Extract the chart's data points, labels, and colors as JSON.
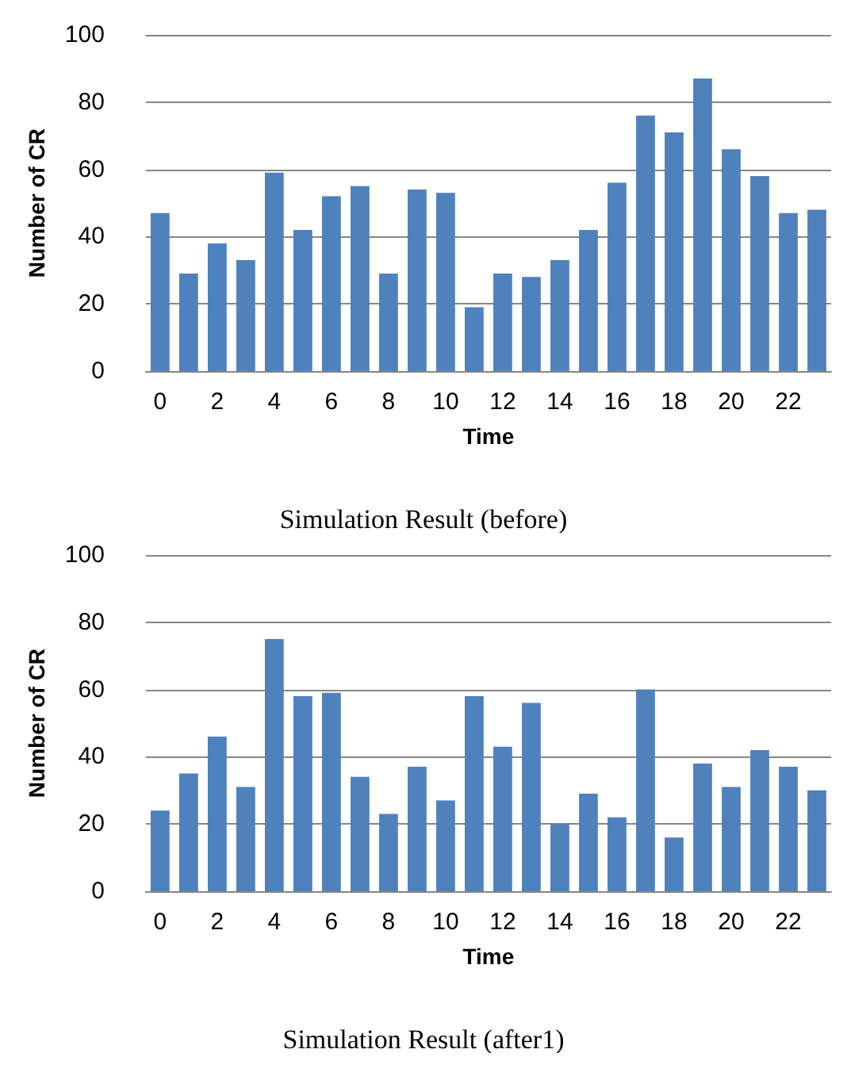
{
  "chart_data": [
    {
      "type": "bar",
      "title": "Simulation Result (before)",
      "xlabel": "Time",
      "ylabel": "Number of CR",
      "categories": [
        "0",
        null,
        "2",
        null,
        "4",
        null,
        "6",
        null,
        "8",
        null,
        "10",
        null,
        "12",
        null,
        "14",
        null,
        "16",
        null,
        "18",
        null,
        "20",
        null,
        "22",
        null
      ],
      "values": [
        47,
        29,
        38,
        33,
        59,
        42,
        52,
        55,
        29,
        54,
        53,
        19,
        29,
        28,
        33,
        42,
        56,
        76,
        71,
        87,
        66,
        58,
        47,
        48
      ],
      "color": "#4f81bd",
      "ylim": [
        0,
        100
      ],
      "yticks": [
        0,
        20,
        40,
        60,
        80,
        100
      ],
      "grid": "y"
    },
    {
      "type": "bar",
      "title": "Simulation Result (after1)",
      "xlabel": "Time",
      "ylabel": "Number of CR",
      "categories": [
        "0",
        null,
        "2",
        null,
        "4",
        null,
        "6",
        null,
        "8",
        null,
        "10",
        null,
        "12",
        null,
        "14",
        null,
        "16",
        null,
        "18",
        null,
        "20",
        null,
        "22",
        null
      ],
      "values": [
        24,
        35,
        46,
        31,
        75,
        58,
        59,
        34,
        23,
        37,
        27,
        58,
        43,
        56,
        20,
        29,
        22,
        60,
        16,
        38,
        31,
        42,
        37,
        30
      ],
      "color": "#4f81bd",
      "ylim": [
        0,
        100
      ],
      "yticks": [
        0,
        20,
        40,
        60,
        80,
        100
      ],
      "grid": "y"
    }
  ]
}
